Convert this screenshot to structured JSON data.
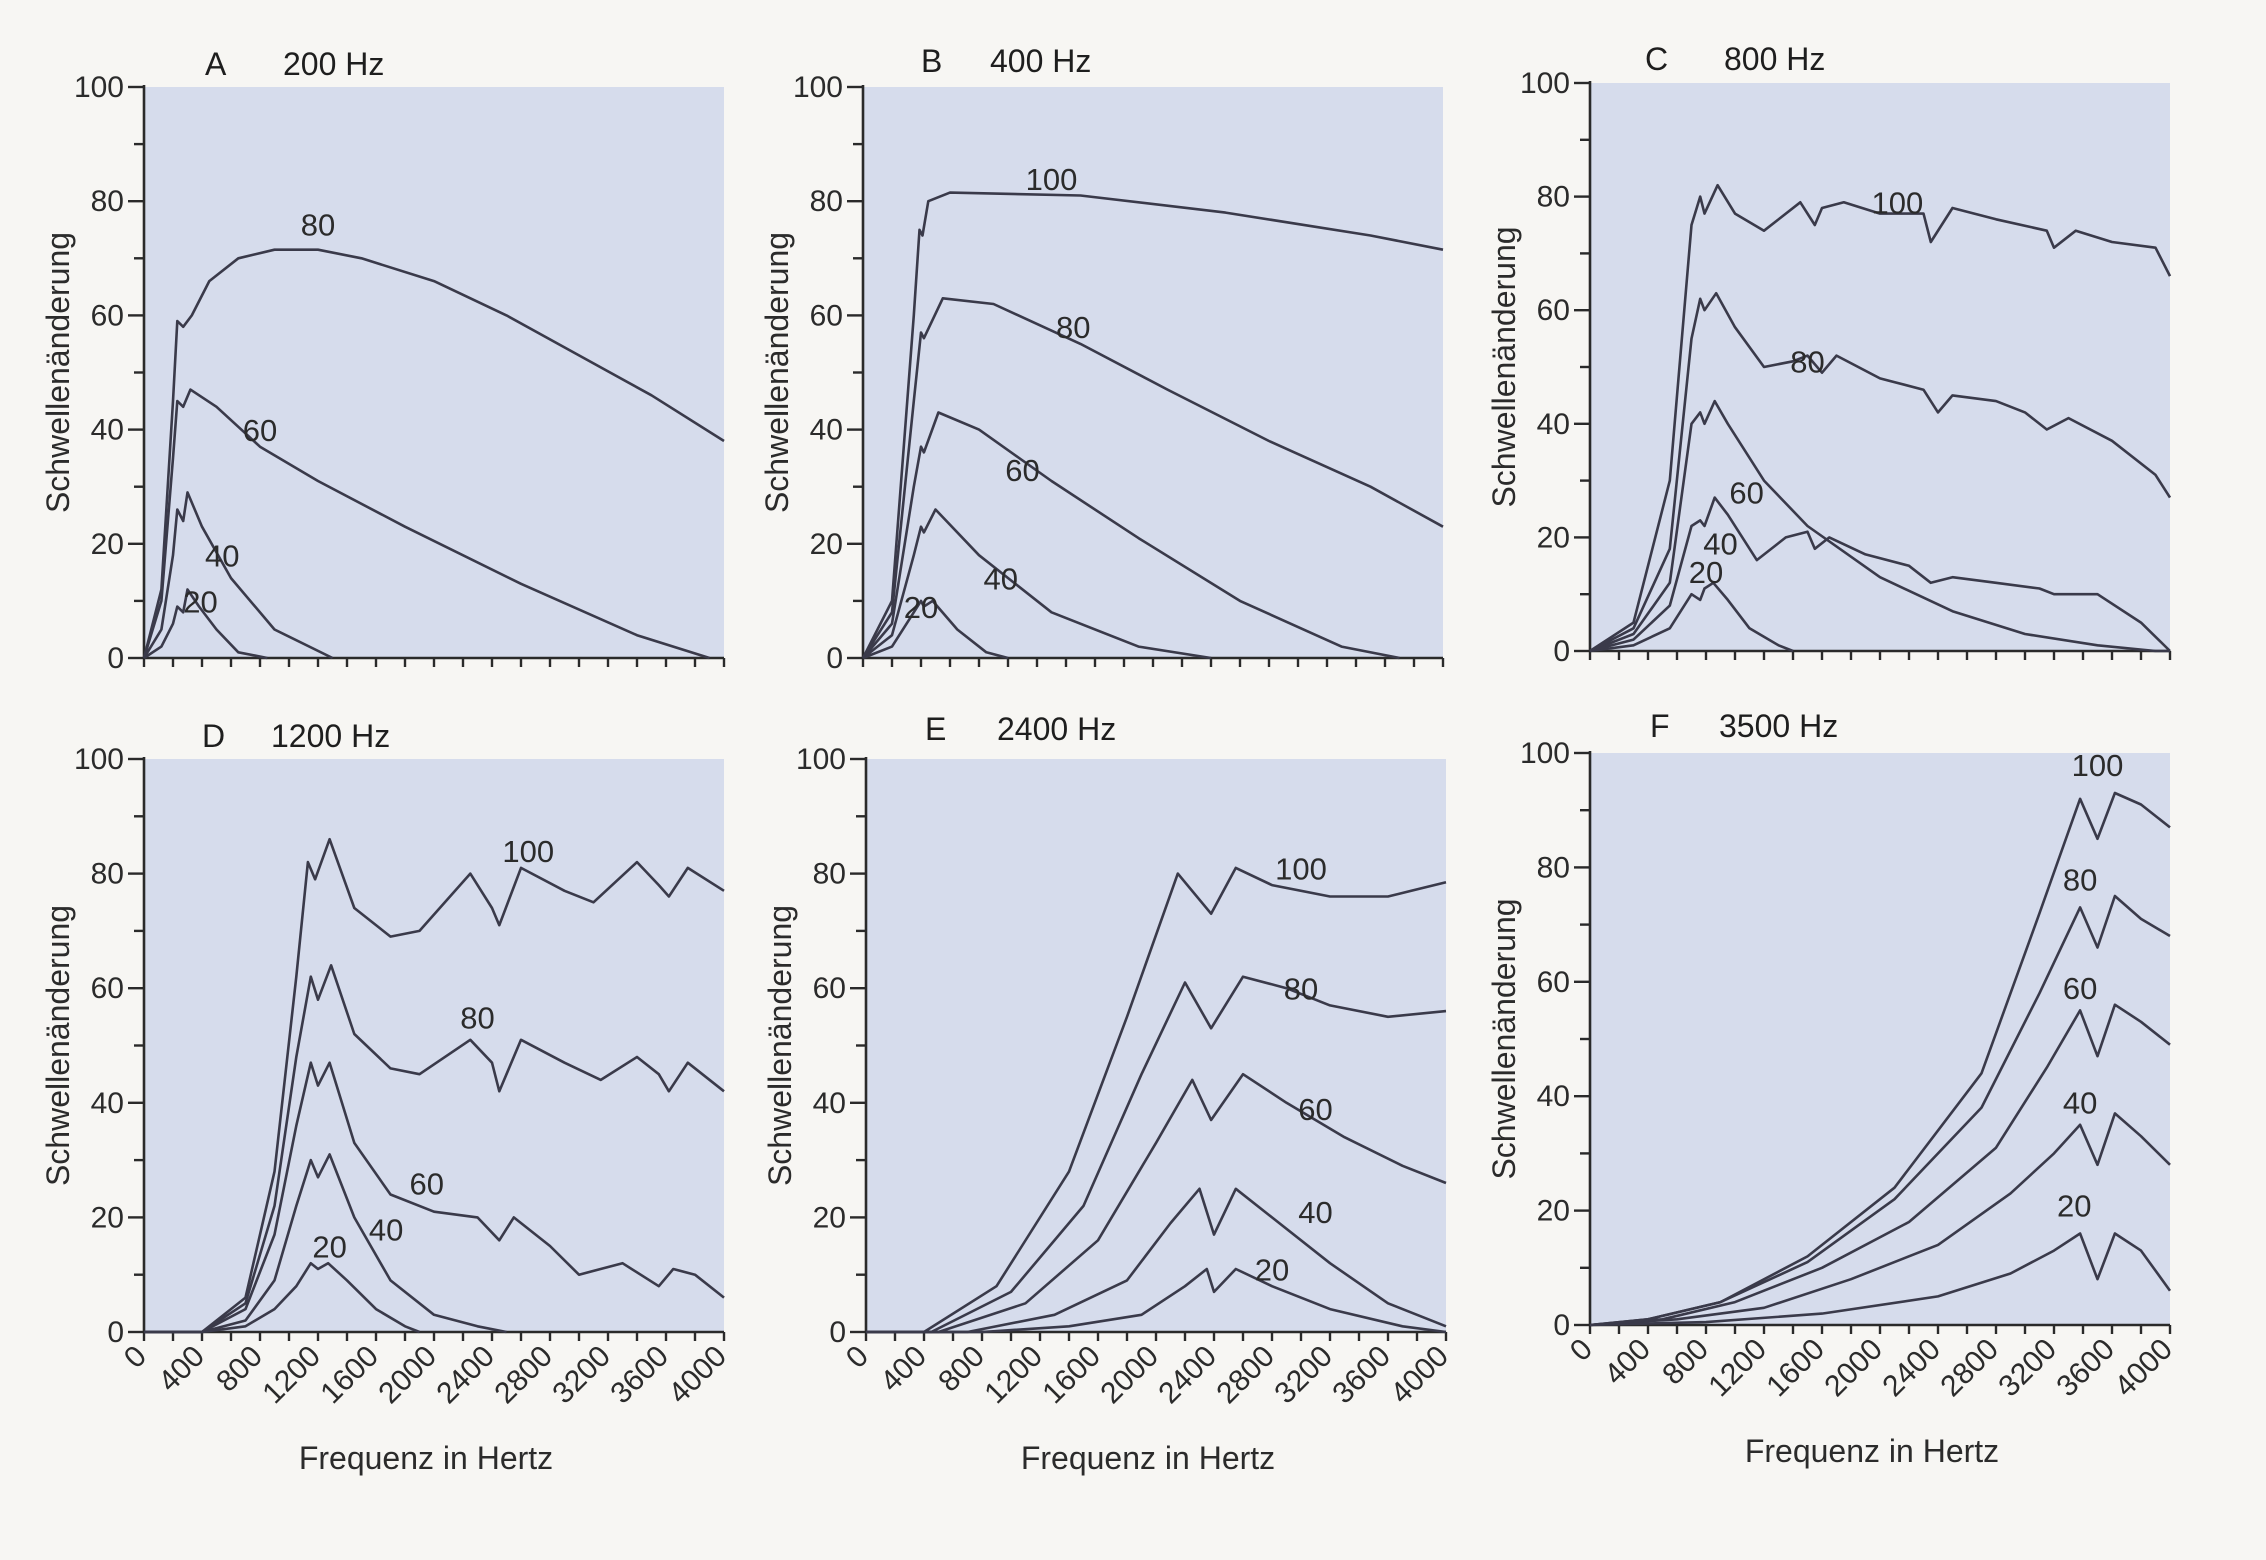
{
  "chart_data": [
    {
      "type": "line",
      "panel": "A",
      "title": "200 Hz",
      "xlabel": "",
      "ylabel": "Schwellenänderung",
      "xlim": [
        0,
        4000
      ],
      "ylim": [
        0,
        100
      ],
      "xticks": [],
      "yticks": [
        0,
        20,
        40,
        60,
        80,
        100
      ],
      "series": [
        {
          "name": "20",
          "x": [
            0,
            120,
            200,
            230,
            270,
            300,
            380,
            500,
            650,
            850
          ],
          "y": [
            0,
            2,
            6,
            9,
            8,
            12,
            9,
            5,
            1,
            0
          ]
        },
        {
          "name": "40",
          "x": [
            0,
            120,
            200,
            230,
            270,
            300,
            400,
            600,
            900,
            1300
          ],
          "y": [
            0,
            5,
            18,
            26,
            24,
            29,
            23,
            14,
            5,
            0
          ]
        },
        {
          "name": "60",
          "x": [
            0,
            120,
            200,
            230,
            270,
            320,
            500,
            800,
            1200,
            1800,
            2600,
            3400,
            3900
          ],
          "y": [
            0,
            10,
            35,
            45,
            44,
            47,
            44,
            37,
            31,
            23,
            13,
            4,
            0
          ]
        },
        {
          "name": "80",
          "x": [
            0,
            120,
            200,
            230,
            270,
            330,
            450,
            650,
            900,
            1200,
            1500,
            2000,
            2500,
            3000,
            3500,
            4000
          ],
          "y": [
            0,
            12,
            45,
            59,
            58,
            60,
            66,
            70,
            71.5,
            71.5,
            70,
            66,
            60,
            53,
            46,
            38
          ]
        }
      ]
    },
    {
      "type": "line",
      "panel": "B",
      "title": "400 Hz",
      "xlabel": "",
      "ylabel": "Schwellenänderung",
      "xlim": [
        0,
        4000
      ],
      "ylim": [
        0,
        100
      ],
      "xticks": [],
      "yticks": [
        0,
        20,
        40,
        60,
        80,
        100
      ],
      "series": [
        {
          "name": "20",
          "x": [
            0,
            200,
            350,
            400,
            420,
            480,
            650,
            850,
            1000
          ],
          "y": [
            0,
            2,
            8,
            10,
            9,
            10,
            5,
            1,
            0
          ]
        },
        {
          "name": "40",
          "x": [
            0,
            200,
            350,
            400,
            420,
            500,
            800,
            1300,
            1900,
            2400
          ],
          "y": [
            0,
            4,
            18,
            23,
            22,
            26,
            18,
            8,
            2,
            0
          ]
        },
        {
          "name": "60",
          "x": [
            0,
            200,
            350,
            400,
            420,
            520,
            800,
            1300,
            1900,
            2600,
            3300,
            3700
          ],
          "y": [
            0,
            6,
            30,
            37,
            36,
            43,
            40,
            31,
            21,
            10,
            2,
            0
          ]
        },
        {
          "name": "80",
          "x": [
            0,
            200,
            350,
            400,
            420,
            550,
            900,
            1500,
            2100,
            2800,
            3500,
            4000
          ],
          "y": [
            0,
            8,
            45,
            57,
            56,
            63,
            62,
            55,
            47,
            38,
            30,
            23
          ]
        },
        {
          "name": "100",
          "x": [
            0,
            200,
            350,
            390,
            410,
            450,
            600,
            1500,
            2500,
            3500,
            4000
          ],
          "y": [
            0,
            10,
            60,
            75,
            74,
            80,
            81.5,
            81,
            78,
            74,
            71.5
          ]
        }
      ]
    },
    {
      "type": "line",
      "panel": "C",
      "title": "800 Hz",
      "xlabel": "",
      "ylabel": "Schwellenänderung",
      "xlim": [
        0,
        4000
      ],
      "ylim": [
        0,
        100
      ],
      "xticks": [],
      "yticks": [
        0,
        20,
        40,
        60,
        80,
        100
      ],
      "series": [
        {
          "name": "20",
          "x": [
            0,
            300,
            550,
            700,
            760,
            790,
            850,
            950,
            1100,
            1300,
            1400
          ],
          "y": [
            0,
            1,
            4,
            10,
            9,
            11,
            12,
            9,
            4,
            1,
            0
          ]
        },
        {
          "name": "40",
          "x": [
            0,
            300,
            550,
            700,
            760,
            790,
            860,
            950,
            1150,
            1350,
            1500,
            1550,
            1650,
            1900,
            2200,
            2350,
            2500,
            2800,
            3100,
            3200,
            3500,
            3800,
            4000
          ],
          "y": [
            0,
            2,
            8,
            22,
            23,
            22,
            27,
            24,
            16,
            20,
            21,
            18,
            20,
            17,
            15,
            12,
            13,
            12,
            11,
            10,
            10,
            5,
            0
          ]
        },
        {
          "name": "60",
          "x": [
            0,
            300,
            550,
            700,
            760,
            790,
            860,
            950,
            1200,
            1500,
            2000,
            2500,
            3000,
            3500,
            3900,
            4000
          ],
          "y": [
            0,
            3,
            12,
            40,
            42,
            40,
            44,
            40,
            30,
            22,
            13,
            7,
            3,
            1,
            0,
            0
          ]
        },
        {
          "name": "80",
          "x": [
            0,
            300,
            550,
            700,
            760,
            790,
            870,
            1000,
            1200,
            1400,
            1500,
            1600,
            1700,
            2000,
            2300,
            2400,
            2500,
            2800,
            3000,
            3150,
            3300,
            3600,
            3900,
            4000
          ],
          "y": [
            0,
            4,
            18,
            55,
            62,
            60,
            63,
            57,
            50,
            51,
            52,
            49,
            52,
            48,
            46,
            42,
            45,
            44,
            42,
            39,
            41,
            37,
            31,
            27
          ]
        },
        {
          "name": "100",
          "x": [
            0,
            300,
            550,
            700,
            760,
            790,
            880,
            1000,
            1200,
            1450,
            1550,
            1600,
            1750,
            2000,
            2300,
            2350,
            2500,
            2800,
            3150,
            3200,
            3350,
            3600,
            3900,
            4000
          ],
          "y": [
            0,
            5,
            30,
            75,
            80,
            77,
            82,
            77,
            74,
            79,
            75,
            78,
            79,
            77,
            77,
            72,
            78,
            76,
            74,
            71,
            74,
            72,
            71,
            66
          ]
        }
      ]
    },
    {
      "type": "line",
      "panel": "D",
      "title": "1200 Hz",
      "xlabel": "Frequenz in Hertz",
      "ylabel": "Schwellenänderung",
      "xlim": [
        0,
        4000
      ],
      "ylim": [
        0,
        100
      ],
      "xticks": [
        0,
        400,
        800,
        1200,
        1600,
        2000,
        2400,
        2800,
        3200,
        3600,
        4000
      ],
      "yticks": [
        0,
        20,
        40,
        60,
        80,
        100
      ],
      "series": [
        {
          "name": "20",
          "x": [
            0,
            400,
            700,
            900,
            1050,
            1150,
            1200,
            1270,
            1400,
            1600,
            1800,
            1900
          ],
          "y": [
            0,
            0,
            1,
            4,
            8,
            12,
            11,
            12,
            9,
            4,
            1,
            0
          ]
        },
        {
          "name": "40",
          "x": [
            0,
            400,
            700,
            900,
            1050,
            1150,
            1200,
            1280,
            1450,
            1700,
            2000,
            2300,
            2500
          ],
          "y": [
            0,
            0,
            2,
            9,
            22,
            30,
            27,
            31,
            20,
            9,
            3,
            1,
            0
          ]
        },
        {
          "name": "60",
          "x": [
            0,
            400,
            700,
            900,
            1050,
            1150,
            1200,
            1280,
            1450,
            1700,
            2000,
            2300,
            2450,
            2550,
            2800,
            3000,
            3300,
            3550,
            3650,
            3800,
            4000
          ],
          "y": [
            0,
            0,
            4,
            17,
            36,
            47,
            43,
            47,
            33,
            24,
            21,
            20,
            16,
            20,
            15,
            10,
            12,
            8,
            11,
            10,
            6
          ]
        },
        {
          "name": "80",
          "x": [
            0,
            400,
            700,
            900,
            1050,
            1150,
            1200,
            1290,
            1450,
            1700,
            1900,
            2250,
            2400,
            2450,
            2600,
            2900,
            3150,
            3400,
            3550,
            3620,
            3750,
            4000
          ],
          "y": [
            0,
            0,
            5,
            22,
            48,
            62,
            58,
            64,
            52,
            46,
            45,
            51,
            47,
            42,
            51,
            47,
            44,
            48,
            45,
            42,
            47,
            42
          ]
        },
        {
          "name": "100",
          "x": [
            0,
            400,
            700,
            900,
            1050,
            1130,
            1180,
            1280,
            1450,
            1700,
            1900,
            2250,
            2400,
            2450,
            2600,
            2900,
            3100,
            3400,
            3550,
            3620,
            3750,
            4000
          ],
          "y": [
            0,
            0,
            6,
            28,
            62,
            82,
            79,
            86,
            74,
            69,
            70,
            80,
            74,
            71,
            81,
            77,
            75,
            82,
            78,
            76,
            81,
            77
          ]
        }
      ]
    },
    {
      "type": "line",
      "panel": "E",
      "title": "2400 Hz",
      "xlabel": "Frequenz in Hertz",
      "ylabel": "Schwellenänderung",
      "xlim": [
        0,
        4000
      ],
      "ylim": [
        0,
        100
      ],
      "xticks": [
        0,
        400,
        800,
        1200,
        1600,
        2000,
        2400,
        2800,
        3200,
        3600,
        4000
      ],
      "yticks": [
        0,
        20,
        40,
        60,
        80,
        100
      ],
      "series": [
        {
          "name": "20",
          "x": [
            0,
            800,
            1400,
            1900,
            2200,
            2350,
            2400,
            2550,
            2800,
            3200,
            3700,
            4000
          ],
          "y": [
            0,
            0,
            1,
            3,
            8,
            11,
            7,
            11,
            8,
            4,
            1,
            0
          ]
        },
        {
          "name": "40",
          "x": [
            0,
            700,
            1300,
            1800,
            2100,
            2300,
            2400,
            2550,
            2800,
            3200,
            3600,
            4000
          ],
          "y": [
            0,
            0,
            3,
            9,
            19,
            25,
            17,
            25,
            20,
            12,
            5,
            1
          ]
        },
        {
          "name": "60",
          "x": [
            0,
            500,
            1100,
            1600,
            2000,
            2250,
            2380,
            2600,
            2900,
            3300,
            3700,
            4000
          ],
          "y": [
            0,
            0,
            5,
            16,
            33,
            44,
            37,
            45,
            40,
            34,
            29,
            26
          ]
        },
        {
          "name": "80",
          "x": [
            0,
            450,
            1000,
            1500,
            1900,
            2200,
            2380,
            2600,
            2900,
            3200,
            3600,
            4000
          ],
          "y": [
            0,
            0,
            7,
            22,
            45,
            61,
            53,
            62,
            60,
            57,
            55,
            56
          ]
        },
        {
          "name": "100",
          "x": [
            0,
            400,
            900,
            1400,
            1800,
            2150,
            2380,
            2550,
            2800,
            3200,
            3600,
            4000
          ],
          "y": [
            0,
            0,
            8,
            28,
            55,
            80,
            73,
            81,
            78,
            76,
            76,
            78.5
          ]
        }
      ]
    },
    {
      "type": "line",
      "panel": "F",
      "title": "3500 Hz",
      "xlabel": "Frequenz in Hertz",
      "ylabel": "Schwellenänderung",
      "xlim": [
        0,
        4000
      ],
      "ylim": [
        0,
        100
      ],
      "xticks": [
        0,
        400,
        800,
        1200,
        1600,
        2000,
        2400,
        2800,
        3200,
        3600,
        4000
      ],
      "yticks": [
        0,
        20,
        40,
        60,
        80,
        100
      ],
      "series": [
        {
          "name": "20",
          "x": [
            0,
            800,
            1600,
            2400,
            2900,
            3200,
            3380,
            3500,
            3620,
            3800,
            4000
          ],
          "y": [
            0,
            0.5,
            2,
            5,
            9,
            13,
            16,
            8,
            16,
            13,
            6
          ]
        },
        {
          "name": "40",
          "x": [
            0,
            600,
            1200,
            1800,
            2400,
            2900,
            3200,
            3380,
            3500,
            3620,
            3800,
            4000
          ],
          "y": [
            0,
            1,
            3,
            8,
            14,
            23,
            30,
            35,
            28,
            37,
            33,
            28
          ]
        },
        {
          "name": "60",
          "x": [
            0,
            500,
            1000,
            1600,
            2200,
            2800,
            3150,
            3380,
            3500,
            3620,
            3800,
            4000
          ],
          "y": [
            0,
            1,
            4,
            10,
            18,
            31,
            45,
            55,
            47,
            56,
            53,
            49
          ]
        },
        {
          "name": "80",
          "x": [
            0,
            400,
            900,
            1500,
            2100,
            2700,
            3100,
            3380,
            3500,
            3620,
            3800,
            4000
          ],
          "y": [
            0,
            1,
            4,
            11,
            22,
            38,
            58,
            73,
            66,
            75,
            71,
            68
          ]
        },
        {
          "name": "100",
          "x": [
            0,
            400,
            900,
            1500,
            2100,
            2700,
            3100,
            3380,
            3500,
            3620,
            3800,
            4000
          ],
          "y": [
            0,
            1,
            4,
            12,
            24,
            44,
            72,
            92,
            85,
            93,
            91,
            87
          ]
        }
      ]
    }
  ]
}
